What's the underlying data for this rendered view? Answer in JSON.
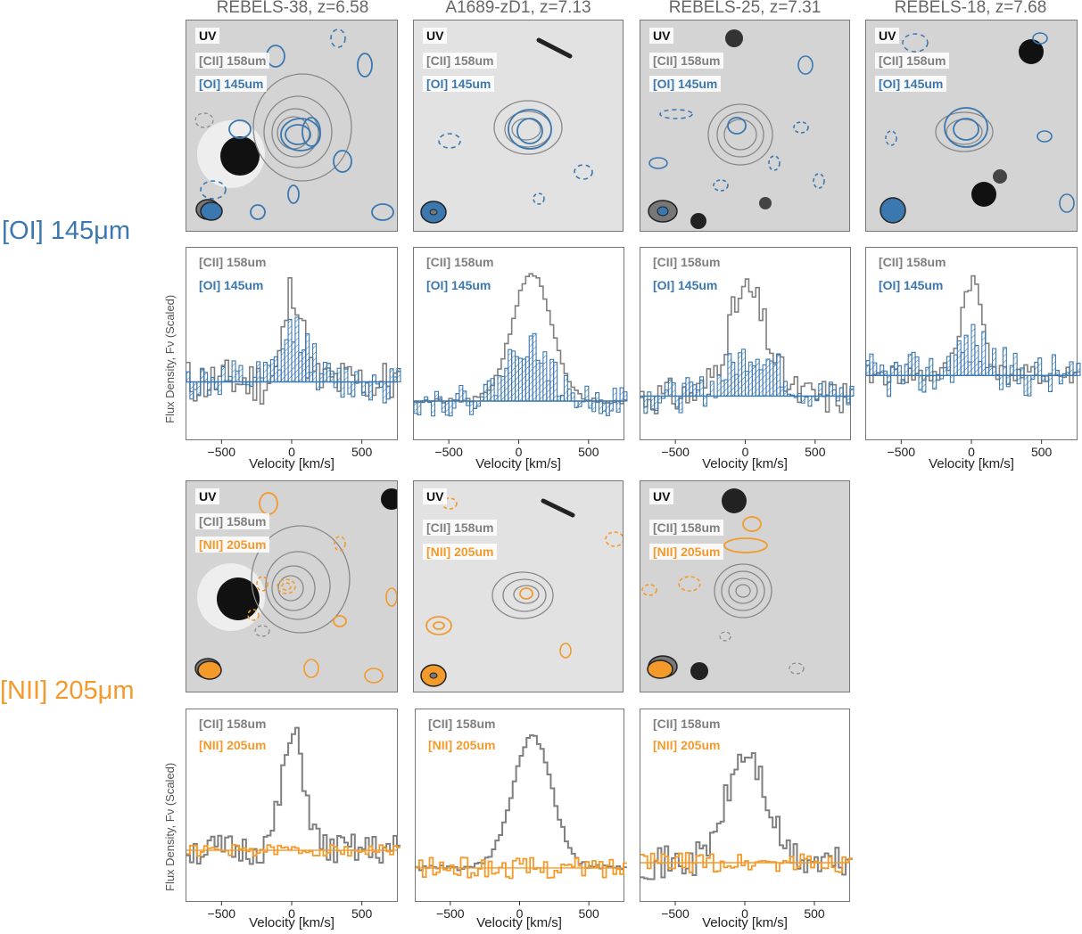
{
  "colors": {
    "cii": "#7f7f7f",
    "oi": "#3b78b0",
    "nii": "#f39a2b",
    "uv_bg": "#d4d4d4"
  },
  "columns": [
    {
      "title": "REBELS-38, z=6.58"
    },
    {
      "title": "A1689-zD1, z=7.13"
    },
    {
      "title": "REBELS-25, z=7.31"
    },
    {
      "title": "REBELS-18, z=7.68"
    }
  ],
  "rows": {
    "oi_label": "[OI] 145μm",
    "nii_label": "[NII] 205μm"
  },
  "image_labels": {
    "uv": "UV",
    "cii": "[CII] 158um",
    "oi": "[OI] 145um",
    "nii": "[NII] 205um"
  },
  "axes": {
    "ylabel": "Flux Density, Fν (Scaled)",
    "xlabel": "Velocity [km/s]",
    "xticks": [
      "−500",
      "0",
      "500"
    ]
  },
  "chart_data": [
    {
      "type": "line",
      "row": "OI",
      "column": "REBELS-38, z=6.58",
      "xlabel": "Velocity [km/s]",
      "ylabel": "Flux Density, Fν (Scaled)",
      "xlim": [
        -750,
        750
      ],
      "ylim": [
        -0.6,
        1.4
      ],
      "series": [
        {
          "name": "[CII] 158um",
          "shape": "gauss",
          "peak": 1.0,
          "center": 0,
          "sigma": 60,
          "noise": 0.25,
          "seed": 11
        },
        {
          "name": "[OI] 145um",
          "shape": "gauss",
          "peak": 0.55,
          "center": 20,
          "sigma": 90,
          "noise": 0.22,
          "seed": 12
        }
      ]
    },
    {
      "type": "line",
      "row": "OI",
      "column": "A1689-zD1, z=7.13",
      "xlabel": "Velocity [km/s]",
      "ylabel": "Flux Density, Fν (Scaled)",
      "xlim": [
        -750,
        750
      ],
      "ylim": [
        -0.3,
        1.2
      ],
      "series": [
        {
          "name": "[CII] 158um",
          "shape": "gauss",
          "peak": 1.0,
          "center": 80,
          "sigma": 140,
          "noise": 0.02,
          "seed": 21
        },
        {
          "name": "[OI] 145um",
          "shape": "gauss",
          "peak": 0.45,
          "center": 50,
          "sigma": 150,
          "noise": 0.12,
          "seed": 22
        }
      ]
    },
    {
      "type": "line",
      "row": "OI",
      "column": "REBELS-25, z=7.31",
      "xlabel": "Velocity [km/s]",
      "ylabel": "Flux Density, Fν (Scaled)",
      "xlim": [
        -750,
        750
      ],
      "ylim": [
        -0.35,
        1.2
      ],
      "series": [
        {
          "name": "[CII] 158um",
          "shape": "gauss",
          "peak": 0.85,
          "center": 0,
          "sigma": 140,
          "noise": 0.15,
          "seed": 31
        },
        {
          "name": "[OI] 145um",
          "shape": "gauss",
          "peak": 0.35,
          "center": 50,
          "sigma": 180,
          "noise": 0.14,
          "seed": 32
        }
      ]
    },
    {
      "type": "line",
      "row": "OI",
      "column": "REBELS-18, z=7.68",
      "xlabel": "Velocity [km/s]",
      "ylabel": "Flux Density, Fν (Scaled)",
      "xlim": [
        -750,
        750
      ],
      "ylim": [
        -0.6,
        1.2
      ],
      "series": [
        {
          "name": "[CII] 158um",
          "shape": "gauss",
          "peak": 0.9,
          "center": -10,
          "sigma": 75,
          "noise": 0.1,
          "seed": 41
        },
        {
          "name": "[OI] 145um",
          "shape": "gauss",
          "peak": 0.3,
          "center": 0,
          "sigma": 120,
          "noise": 0.22,
          "seed": 42
        }
      ]
    },
    {
      "type": "line",
      "row": "NII",
      "column": "REBELS-38, z=6.58",
      "xlabel": "Velocity [km/s]",
      "ylabel": "Flux Density, Fν (Scaled)",
      "xlim": [
        -750,
        750
      ],
      "ylim": [
        -0.45,
        1.25
      ],
      "series": [
        {
          "name": "[CII] 158um",
          "shape": "gauss",
          "peak": 1.0,
          "center": 0,
          "sigma": 80,
          "noise": 0.14,
          "seed": 51
        },
        {
          "name": "[NII] 205um",
          "shape": "flat",
          "peak": 0,
          "center": 0,
          "sigma": 100,
          "noise": 0.05,
          "seed": 52
        }
      ]
    },
    {
      "type": "line",
      "row": "NII",
      "column": "A1689-zD1, z=7.13",
      "xlabel": "Velocity [km/s]",
      "ylabel": "Flux Density, Fν (Scaled)",
      "xlim": [
        -750,
        750
      ],
      "ylim": [
        -0.25,
        1.2
      ],
      "series": [
        {
          "name": "[CII] 158um",
          "shape": "gauss",
          "peak": 1.0,
          "center": 80,
          "sigma": 140,
          "noise": 0.02,
          "seed": 61
        },
        {
          "name": "[NII] 205um",
          "shape": "flat",
          "peak": 0,
          "center": 0,
          "sigma": 100,
          "noise": 0.08,
          "seed": 62
        }
      ]
    },
    {
      "type": "line",
      "row": "NII",
      "column": "REBELS-25, z=7.31",
      "xlabel": "Velocity [km/s]",
      "ylabel": "Flux Density, Fν (Scaled)",
      "xlim": [
        -750,
        750
      ],
      "ylim": [
        -0.3,
        1.2
      ],
      "series": [
        {
          "name": "[CII] 158um",
          "shape": "gauss",
          "peak": 0.85,
          "center": 0,
          "sigma": 140,
          "noise": 0.13,
          "seed": 71
        },
        {
          "name": "[NII] 205um",
          "shape": "flat",
          "peak": 0,
          "center": 0,
          "sigma": 100,
          "noise": 0.08,
          "seed": 72
        }
      ]
    }
  ]
}
